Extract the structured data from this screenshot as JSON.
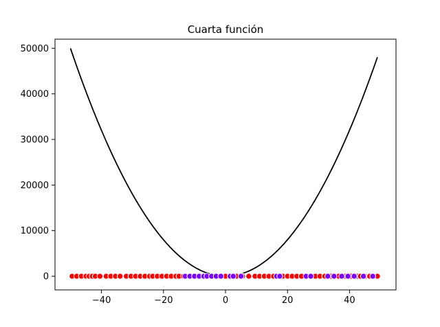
{
  "chart_data": {
    "type": "scatter",
    "title": "Cuarta función",
    "xlabel": "",
    "ylabel": "",
    "xlim": [
      -55,
      55
    ],
    "ylim": [
      -3000,
      52000
    ],
    "x_ticks": [
      -40,
      -20,
      0,
      20,
      40
    ],
    "x_tick_labels": [
      "−40",
      "−20",
      "0",
      "20",
      "40"
    ],
    "y_ticks": [
      0,
      10000,
      20000,
      30000,
      40000,
      50000
    ],
    "y_tick_labels": [
      "0",
      "10000",
      "20000",
      "30000",
      "40000",
      "50000"
    ],
    "grid": false,
    "curve": {
      "type": "line",
      "color": "#000000",
      "x_start": -50,
      "x_end": 49,
      "coefficients_quadratic": [
        20,
        0.5,
        0
      ],
      "note_expr": "20*x^2 + 0.5*x"
    },
    "points": {
      "y": 0,
      "colors": {
        "red": "#ff0000",
        "purple": "#7a00ff"
      },
      "x_red": [
        -49.5,
        -48.0,
        -46.5,
        -45.0,
        -44.0,
        -43.0,
        -42.0,
        -40.5,
        -38.5,
        -37.0,
        -35.5,
        -34.0,
        -32.0,
        -30.5,
        -29.0,
        -27.5,
        -26.0,
        -24.5,
        -23.5,
        -22.0,
        -20.5,
        -19.0,
        -17.5,
        -16.0,
        -15.0,
        -13.5,
        0.0,
        3.5,
        5.5,
        7.5,
        9.5,
        11.0,
        12.5,
        14.0,
        15.5,
        18.5,
        20.0,
        21.5,
        23.0,
        24.5,
        29.0,
        30.5,
        32.0,
        34.0,
        36.5,
        38.5,
        40.5,
        42.5,
        43.5,
        45.0,
        46.5,
        48.0,
        49.0
      ],
      "x_purple": [
        -13.0,
        -11.5,
        -10.0,
        -8.5,
        -7.0,
        -6.0,
        -4.5,
        -3.0,
        -1.5,
        1.5,
        2.5,
        5.0,
        16.5,
        17.5,
        26.0,
        27.5,
        33.0,
        35.0,
        37.5,
        39.5,
        41.5,
        44.5,
        47.5
      ]
    }
  }
}
